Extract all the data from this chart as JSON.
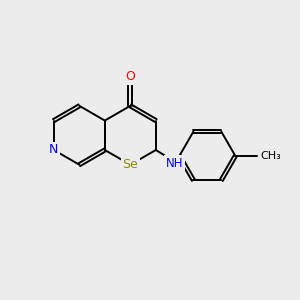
{
  "bg_color": "#ececec",
  "bond_color": "#000000",
  "N_color": "#0000ff",
  "O_color": "#ff0000",
  "Se_color": "#8b8b00",
  "C_color": "#000000",
  "line_width": 1.4,
  "dbo": 0.055,
  "figsize": [
    3.0,
    3.0
  ],
  "dpi": 100,
  "xlim": [
    0,
    10
  ],
  "ylim": [
    0,
    10
  ]
}
